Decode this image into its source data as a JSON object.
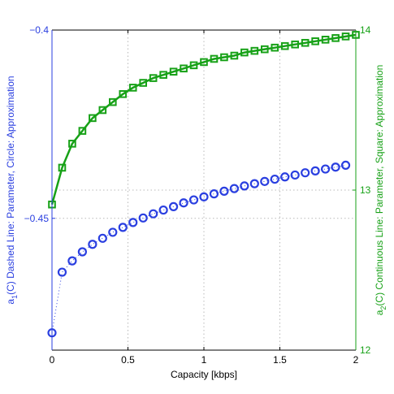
{
  "chart_data": {
    "type": "line",
    "xlabel": "Capacity [kbps]",
    "x_ticks": [
      "0",
      "0.5",
      "1",
      "1.5",
      "2"
    ],
    "xlim": [
      0,
      2
    ],
    "left_axis": {
      "ylim": [
        -0.485,
        -0.4
      ],
      "ticks": [
        "-0.4",
        "-0.45"
      ],
      "tick_values": [
        -0.4,
        -0.45
      ],
      "label_main": "a",
      "label_sub": "1",
      "label_rest": "(C) Dashed Line: Parameter, Circle: Approximation",
      "color": "#2a3fe0"
    },
    "right_axis": {
      "ylim": [
        12,
        14
      ],
      "ticks": [
        "14",
        "13",
        "12"
      ],
      "tick_values": [
        14,
        13,
        12
      ],
      "label_main": "a",
      "label_sub": "2",
      "label_rest": "(C) Continuous Line: Parameter, Square: Approximation",
      "color": "#17a117"
    },
    "grid": true,
    "series": [
      {
        "axis": "left",
        "style": "dashed",
        "marker": "circle",
        "color": "#2a3fe0",
        "x": [
          0,
          0.0667,
          0.1333,
          0.2,
          0.2667,
          0.3333,
          0.4,
          0.4667,
          0.5333,
          0.6,
          0.6667,
          0.7333,
          0.8,
          0.8667,
          0.9333,
          1.0,
          1.0667,
          1.1333,
          1.2,
          1.2667,
          1.3333,
          1.4,
          1.4667,
          1.5333,
          1.6,
          1.6667,
          1.7333,
          1.8,
          1.8667,
          1.9333
        ],
        "y": [
          -0.4804,
          -0.4643,
          -0.4613,
          -0.4589,
          -0.4569,
          -0.4553,
          -0.4537,
          -0.4524,
          -0.4511,
          -0.4499,
          -0.4488,
          -0.4478,
          -0.4469,
          -0.4459,
          -0.4451,
          -0.4443,
          -0.4435,
          -0.4428,
          -0.4421,
          -0.4414,
          -0.4408,
          -0.4402,
          -0.4396,
          -0.439,
          -0.4385,
          -0.4379,
          -0.4374,
          -0.4369,
          -0.4364,
          -0.4359
        ]
      },
      {
        "axis": "right",
        "style": "solid",
        "marker": "square",
        "color": "#17a117",
        "x": [
          0,
          0.0667,
          0.1333,
          0.2,
          0.2667,
          0.3333,
          0.4,
          0.4667,
          0.5333,
          0.6,
          0.6667,
          0.7333,
          0.8,
          0.8667,
          0.9333,
          1.0,
          1.0667,
          1.1333,
          1.2,
          1.2667,
          1.3333,
          1.4,
          1.4667,
          1.5333,
          1.6,
          1.6667,
          1.7333,
          1.8,
          1.8667,
          1.9333,
          2.0
        ],
        "y": [
          12.91,
          13.14,
          13.29,
          13.37,
          13.45,
          13.5,
          13.55,
          13.6,
          13.64,
          13.67,
          13.7,
          13.72,
          13.74,
          13.76,
          13.78,
          13.8,
          13.82,
          13.83,
          13.84,
          13.86,
          13.87,
          13.88,
          13.89,
          13.9,
          13.91,
          13.92,
          13.93,
          13.94,
          13.95,
          13.96,
          13.97
        ]
      }
    ]
  }
}
